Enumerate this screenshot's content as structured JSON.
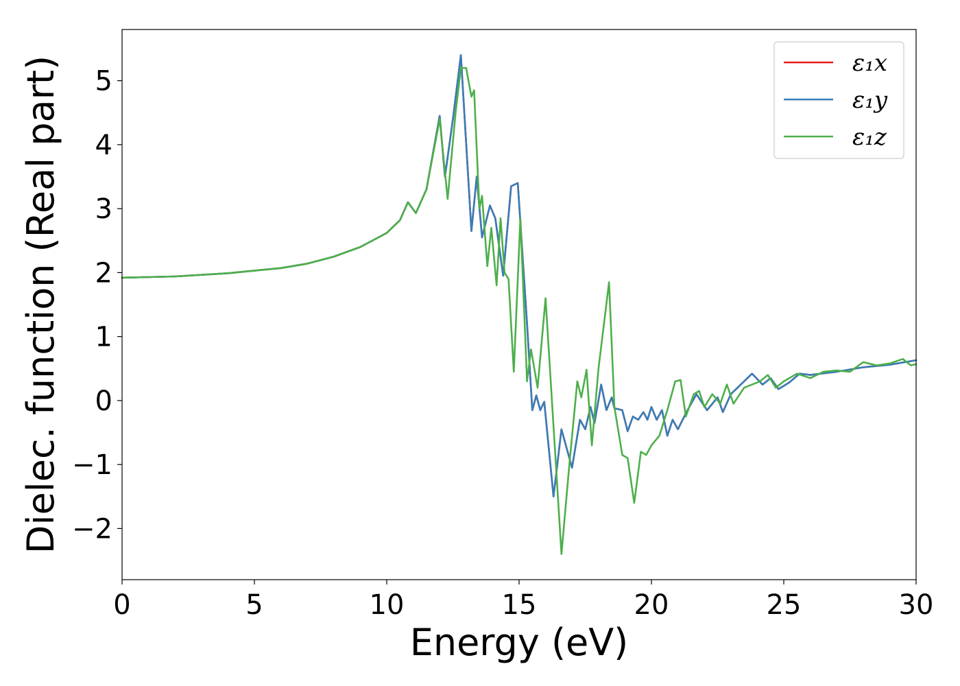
{
  "chart_data": {
    "type": "line",
    "xlabel": "Energy (eV)",
    "ylabel": "Dielec. function (Real part)",
    "xlim": [
      0,
      30
    ],
    "ylim": [
      -2.8,
      5.8
    ],
    "xticks": [
      0,
      5,
      10,
      15,
      20,
      25,
      30
    ],
    "yticks": [
      -2,
      -1,
      0,
      1,
      2,
      3,
      4,
      5
    ],
    "xtick_labels": [
      "0",
      "5",
      "10",
      "15",
      "20",
      "25",
      "30"
    ],
    "ytick_labels": [
      "−2",
      "−1",
      "0",
      "1",
      "2",
      "3",
      "4",
      "5"
    ],
    "grid": false,
    "legend_position": "top-right",
    "series": [
      {
        "name": "ε₁x",
        "color": "#e41a1c",
        "points": [
          [
            0,
            1.92
          ],
          [
            2,
            1.94
          ],
          [
            4,
            1.99
          ],
          [
            6,
            2.07
          ],
          [
            7,
            2.14
          ],
          [
            8,
            2.25
          ],
          [
            9,
            2.4
          ],
          [
            10,
            2.62
          ],
          [
            10.5,
            2.82
          ],
          [
            10.8,
            3.1
          ],
          [
            11.1,
            2.93
          ],
          [
            11.5,
            3.3
          ],
          [
            12.0,
            4.45
          ],
          [
            12.2,
            3.5
          ],
          [
            12.5,
            4.4
          ],
          [
            12.8,
            5.4
          ],
          [
            13.2,
            2.65
          ],
          [
            13.4,
            3.5
          ],
          [
            13.6,
            2.55
          ],
          [
            13.9,
            3.05
          ],
          [
            14.1,
            2.85
          ],
          [
            14.4,
            1.95
          ],
          [
            14.7,
            3.35
          ],
          [
            14.95,
            3.4
          ],
          [
            15.3,
            1.2
          ],
          [
            15.5,
            -0.15
          ],
          [
            15.65,
            0.08
          ],
          [
            15.8,
            -0.15
          ],
          [
            15.95,
            -0.02
          ],
          [
            16.3,
            -1.5
          ],
          [
            16.6,
            -0.45
          ],
          [
            17.0,
            -1.05
          ],
          [
            17.3,
            -0.3
          ],
          [
            17.5,
            -0.45
          ],
          [
            17.7,
            -0.1
          ],
          [
            17.85,
            -0.35
          ],
          [
            18.1,
            0.25
          ],
          [
            18.3,
            -0.15
          ],
          [
            18.5,
            0.05
          ],
          [
            18.6,
            -0.12
          ],
          [
            18.9,
            -0.15
          ],
          [
            19.1,
            -0.48
          ],
          [
            19.3,
            -0.25
          ],
          [
            19.5,
            -0.3
          ],
          [
            19.7,
            -0.18
          ],
          [
            19.85,
            -0.3
          ],
          [
            20.0,
            -0.1
          ],
          [
            20.2,
            -0.3
          ],
          [
            20.4,
            -0.15
          ],
          [
            20.6,
            -0.55
          ],
          [
            20.8,
            -0.3
          ],
          [
            21.0,
            -0.45
          ],
          [
            21.3,
            -0.2
          ],
          [
            21.7,
            0.1
          ],
          [
            22.1,
            -0.15
          ],
          [
            22.5,
            0.05
          ],
          [
            22.7,
            -0.18
          ],
          [
            23.0,
            0.1
          ],
          [
            23.5,
            0.3
          ],
          [
            23.8,
            0.42
          ],
          [
            24.2,
            0.25
          ],
          [
            24.5,
            0.35
          ],
          [
            24.8,
            0.18
          ],
          [
            25.2,
            0.28
          ],
          [
            25.6,
            0.42
          ],
          [
            26.0,
            0.4
          ],
          [
            27.0,
            0.45
          ],
          [
            28.0,
            0.52
          ],
          [
            29.0,
            0.56
          ],
          [
            30.0,
            0.63
          ]
        ]
      },
      {
        "name": "ε₁y",
        "color": "#377eb8",
        "points": [
          [
            0,
            1.92
          ],
          [
            2,
            1.94
          ],
          [
            4,
            1.99
          ],
          [
            6,
            2.07
          ],
          [
            7,
            2.14
          ],
          [
            8,
            2.25
          ],
          [
            9,
            2.4
          ],
          [
            10,
            2.62
          ],
          [
            10.5,
            2.82
          ],
          [
            10.8,
            3.1
          ],
          [
            11.1,
            2.93
          ],
          [
            11.5,
            3.3
          ],
          [
            12.0,
            4.45
          ],
          [
            12.2,
            3.5
          ],
          [
            12.5,
            4.4
          ],
          [
            12.8,
            5.4
          ],
          [
            13.2,
            2.65
          ],
          [
            13.4,
            3.5
          ],
          [
            13.6,
            2.55
          ],
          [
            13.9,
            3.05
          ],
          [
            14.1,
            2.85
          ],
          [
            14.4,
            1.95
          ],
          [
            14.7,
            3.35
          ],
          [
            14.95,
            3.4
          ],
          [
            15.3,
            1.2
          ],
          [
            15.5,
            -0.15
          ],
          [
            15.65,
            0.08
          ],
          [
            15.8,
            -0.15
          ],
          [
            15.95,
            -0.02
          ],
          [
            16.3,
            -1.5
          ],
          [
            16.6,
            -0.45
          ],
          [
            17.0,
            -1.05
          ],
          [
            17.3,
            -0.3
          ],
          [
            17.5,
            -0.45
          ],
          [
            17.7,
            -0.1
          ],
          [
            17.85,
            -0.35
          ],
          [
            18.1,
            0.25
          ],
          [
            18.3,
            -0.15
          ],
          [
            18.5,
            0.05
          ],
          [
            18.6,
            -0.12
          ],
          [
            18.9,
            -0.15
          ],
          [
            19.1,
            -0.48
          ],
          [
            19.3,
            -0.25
          ],
          [
            19.5,
            -0.3
          ],
          [
            19.7,
            -0.18
          ],
          [
            19.85,
            -0.3
          ],
          [
            20.0,
            -0.1
          ],
          [
            20.2,
            -0.3
          ],
          [
            20.4,
            -0.15
          ],
          [
            20.6,
            -0.55
          ],
          [
            20.8,
            -0.3
          ],
          [
            21.0,
            -0.45
          ],
          [
            21.3,
            -0.2
          ],
          [
            21.7,
            0.1
          ],
          [
            22.1,
            -0.15
          ],
          [
            22.5,
            0.05
          ],
          [
            22.7,
            -0.18
          ],
          [
            23.0,
            0.1
          ],
          [
            23.5,
            0.3
          ],
          [
            23.8,
            0.42
          ],
          [
            24.2,
            0.25
          ],
          [
            24.5,
            0.35
          ],
          [
            24.8,
            0.18
          ],
          [
            25.2,
            0.28
          ],
          [
            25.6,
            0.42
          ],
          [
            26.0,
            0.4
          ],
          [
            27.0,
            0.45
          ],
          [
            28.0,
            0.52
          ],
          [
            29.0,
            0.56
          ],
          [
            30.0,
            0.63
          ]
        ]
      },
      {
        "name": "ε₁z",
        "color": "#4daf4a",
        "points": [
          [
            0,
            1.92
          ],
          [
            2,
            1.94
          ],
          [
            4,
            1.99
          ],
          [
            6,
            2.07
          ],
          [
            7,
            2.14
          ],
          [
            8,
            2.25
          ],
          [
            9,
            2.4
          ],
          [
            10,
            2.62
          ],
          [
            10.5,
            2.82
          ],
          [
            10.8,
            3.1
          ],
          [
            11.1,
            2.93
          ],
          [
            11.5,
            3.3
          ],
          [
            12.0,
            4.4
          ],
          [
            12.3,
            3.15
          ],
          [
            12.6,
            4.5
          ],
          [
            12.8,
            5.2
          ],
          [
            13.0,
            5.2
          ],
          [
            13.2,
            4.75
          ],
          [
            13.3,
            4.85
          ],
          [
            13.5,
            3.0
          ],
          [
            13.6,
            3.2
          ],
          [
            13.8,
            2.1
          ],
          [
            13.95,
            2.7
          ],
          [
            14.15,
            1.8
          ],
          [
            14.3,
            2.85
          ],
          [
            14.45,
            2.0
          ],
          [
            14.6,
            1.9
          ],
          [
            14.8,
            0.45
          ],
          [
            15.05,
            2.85
          ],
          [
            15.3,
            0.3
          ],
          [
            15.45,
            0.8
          ],
          [
            15.7,
            0.2
          ],
          [
            16.0,
            1.6
          ],
          [
            16.3,
            -0.4
          ],
          [
            16.6,
            -2.4
          ],
          [
            16.9,
            -1.0
          ],
          [
            17.2,
            0.3
          ],
          [
            17.35,
            0.05
          ],
          [
            17.55,
            0.48
          ],
          [
            17.75,
            -0.7
          ],
          [
            18.0,
            0.5
          ],
          [
            18.4,
            1.85
          ],
          [
            18.6,
            -0.1
          ],
          [
            18.9,
            -0.85
          ],
          [
            19.1,
            -0.9
          ],
          [
            19.35,
            -1.6
          ],
          [
            19.6,
            -0.8
          ],
          [
            19.8,
            -0.85
          ],
          [
            20.0,
            -0.7
          ],
          [
            20.3,
            -0.55
          ],
          [
            20.6,
            -0.15
          ],
          [
            20.9,
            0.3
          ],
          [
            21.1,
            0.32
          ],
          [
            21.3,
            -0.25
          ],
          [
            21.6,
            0.1
          ],
          [
            21.8,
            0.15
          ],
          [
            22.0,
            -0.1
          ],
          [
            22.3,
            0.1
          ],
          [
            22.6,
            -0.05
          ],
          [
            22.85,
            0.25
          ],
          [
            23.1,
            -0.05
          ],
          [
            23.5,
            0.2
          ],
          [
            24.1,
            0.3
          ],
          [
            24.4,
            0.4
          ],
          [
            24.7,
            0.2
          ],
          [
            25.0,
            0.3
          ],
          [
            25.5,
            0.42
          ],
          [
            26.0,
            0.35
          ],
          [
            26.5,
            0.45
          ],
          [
            27.0,
            0.47
          ],
          [
            27.5,
            0.45
          ],
          [
            28.0,
            0.6
          ],
          [
            28.5,
            0.55
          ],
          [
            29.0,
            0.58
          ],
          [
            29.5,
            0.65
          ],
          [
            29.8,
            0.55
          ],
          [
            30.0,
            0.57
          ]
        ]
      }
    ]
  }
}
